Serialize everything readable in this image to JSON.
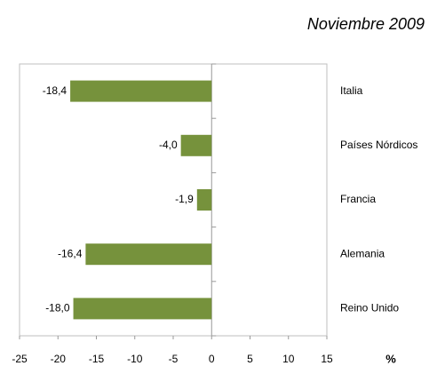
{
  "chart_data": {
    "type": "barh",
    "title": "Noviembre 2009",
    "categories": [
      "Italia",
      "Países Nórdicos",
      "Francia",
      "Alemania",
      "Reino Unido"
    ],
    "values": [
      -18.4,
      -4.0,
      -1.9,
      -16.4,
      -18.0
    ],
    "value_labels": [
      "-18,4",
      "-4,0",
      "-1,9",
      "-16,4",
      "-18,0"
    ],
    "color": "#76923c",
    "xlabel": "%",
    "xlim": [
      -25,
      15
    ],
    "xticks": [
      -25,
      -20,
      -15,
      -10,
      -5,
      0,
      5,
      10,
      15
    ]
  }
}
